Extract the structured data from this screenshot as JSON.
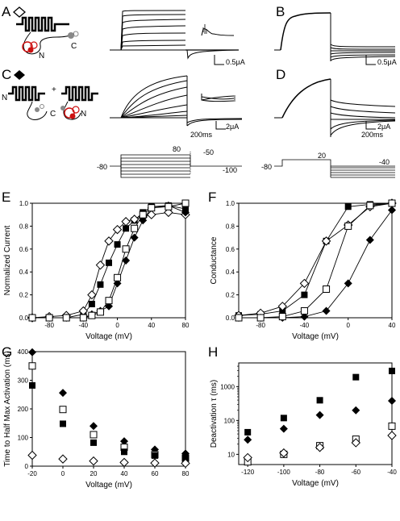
{
  "panels": {
    "A": {
      "label": "A",
      "marker": "open-diamond"
    },
    "B": {
      "label": "B"
    },
    "C": {
      "label": "C",
      "marker": "filled-diamond"
    },
    "D": {
      "label": "D"
    },
    "E": {
      "label": "E"
    },
    "F": {
      "label": "F"
    },
    "G": {
      "label": "G"
    },
    "H": {
      "label": "H"
    }
  },
  "schematic": {
    "n_label": "N",
    "c_label": "C",
    "plus": "+",
    "domain_color": "#cc1111"
  },
  "scalebars": {
    "A_current": "0.5μA",
    "B_current": "0.5μA",
    "C_current": "2μA",
    "C_time": "200ms",
    "D_current": "2μA",
    "D_time": "200ms"
  },
  "protocols": {
    "left": {
      "hold": "-80",
      "step": "80",
      "tail1": "-50",
      "tail2": "-100"
    },
    "right": {
      "hold": "-80",
      "step": "20",
      "tail": "-40"
    }
  },
  "chart_data": [
    {
      "panel": "E",
      "type": "scatter",
      "xlabel": "Voltage (mV)",
      "ylabel": "Normalized Current",
      "xlim": [
        -100,
        80
      ],
      "ylim": [
        0,
        1.0
      ],
      "xticks": [
        "-80",
        "-40",
        "0",
        "40",
        "80"
      ],
      "yticks": [
        "0.0",
        "0.2",
        "0.4",
        "0.6",
        "0.8",
        "1.0"
      ],
      "series": [
        {
          "marker": "filled-square",
          "x": [
            -100,
            -80,
            -60,
            -40,
            -30,
            -20,
            -10,
            0,
            10,
            20,
            30,
            40,
            60,
            80
          ],
          "y": [
            0.0,
            0.0,
            0.0,
            0.03,
            0.12,
            0.29,
            0.48,
            0.64,
            0.78,
            0.85,
            0.92,
            0.97,
            0.98,
            0.95
          ]
        },
        {
          "marker": "open-diamond",
          "x": [
            -100,
            -80,
            -60,
            -40,
            -30,
            -20,
            -10,
            0,
            10,
            20,
            30,
            40,
            60,
            80
          ],
          "y": [
            0.0,
            0.01,
            0.02,
            0.06,
            0.2,
            0.46,
            0.67,
            0.77,
            0.84,
            0.86,
            0.88,
            0.9,
            0.92,
            0.9
          ]
        },
        {
          "marker": "filled-diamond",
          "x": [
            -100,
            -80,
            -60,
            -40,
            -30,
            -20,
            -10,
            0,
            10,
            20,
            30,
            40,
            60,
            80
          ],
          "y": [
            0.0,
            0.0,
            0.0,
            0.0,
            0.03,
            0.06,
            0.1,
            0.3,
            0.5,
            0.7,
            0.85,
            0.96,
            0.98,
            0.92
          ]
        },
        {
          "marker": "open-square",
          "x": [
            -100,
            -80,
            -60,
            -40,
            -30,
            -20,
            -10,
            0,
            10,
            20,
            30,
            40,
            60,
            80
          ],
          "y": [
            0.0,
            0.0,
            0.0,
            0.0,
            0.02,
            0.05,
            0.15,
            0.35,
            0.6,
            0.78,
            0.9,
            0.96,
            0.97,
            1.0
          ]
        }
      ]
    },
    {
      "panel": "F",
      "type": "scatter",
      "xlabel": "Voltage (mV)",
      "ylabel": "Conductance",
      "xlim": [
        -100,
        40
      ],
      "ylim": [
        0,
        1.0
      ],
      "xticks": [
        "-80",
        "-40",
        "0",
        "40"
      ],
      "yticks": [
        "0.0",
        "0.2",
        "0.4",
        "0.6",
        "0.8",
        "1.0"
      ],
      "series": [
        {
          "marker": "filled-square",
          "x": [
            -100,
            -80,
            -60,
            -40,
            -20,
            0,
            20,
            40
          ],
          "y": [
            0.02,
            0.03,
            0.06,
            0.2,
            0.67,
            0.97,
            0.99,
            1.0
          ]
        },
        {
          "marker": "open-diamond",
          "x": [
            -100,
            -80,
            -60,
            -40,
            -20,
            0,
            20,
            40
          ],
          "y": [
            0.02,
            0.04,
            0.1,
            0.3,
            0.67,
            0.81,
            0.97,
            1.0
          ]
        },
        {
          "marker": "filled-diamond",
          "x": [
            -100,
            -80,
            -60,
            -40,
            -20,
            0,
            20,
            40
          ],
          "y": [
            0.0,
            0.0,
            0.0,
            0.01,
            0.06,
            0.3,
            0.68,
            0.94
          ]
        },
        {
          "marker": "open-square",
          "x": [
            -100,
            -80,
            -60,
            -40,
            -20,
            0,
            20,
            40
          ],
          "y": [
            0.0,
            0.0,
            0.01,
            0.06,
            0.25,
            0.8,
            0.98,
            1.0
          ]
        }
      ]
    },
    {
      "panel": "G",
      "type": "scatter",
      "xlabel": "Voltage (mV)",
      "ylabel": "Time to Half Max Activation (ms)",
      "xlim": [
        -20,
        80
      ],
      "ylim": [
        0,
        400
      ],
      "xticks": [
        "-20",
        "0",
        "20",
        "40",
        "60",
        "80"
      ],
      "yticks": [
        "0",
        "100",
        "200",
        "300",
        "400"
      ],
      "series": [
        {
          "marker": "filled-diamond",
          "x": [
            -20,
            0,
            20,
            40,
            60,
            80
          ],
          "y": [
            398,
            256,
            140,
            87,
            58,
            44
          ]
        },
        {
          "marker": "open-square",
          "x": [
            -20,
            0,
            20,
            40,
            60,
            80
          ],
          "y": [
            350,
            198,
            110,
            66,
            40,
            28
          ]
        },
        {
          "marker": "filled-square",
          "x": [
            -20,
            0,
            20,
            40,
            60,
            80
          ],
          "y": [
            282,
            148,
            82,
            50,
            37,
            27
          ]
        },
        {
          "marker": "open-diamond",
          "x": [
            -20,
            0,
            20,
            40,
            60,
            80
          ],
          "y": [
            38,
            25,
            18,
            13,
            11,
            10
          ]
        }
      ]
    },
    {
      "panel": "H",
      "type": "scatter",
      "xlabel": "Voltage (mV)",
      "ylabel": "Deactivation τ (ms)",
      "xlim": [
        -125,
        -40
      ],
      "ylim": [
        5,
        5000
      ],
      "yscale": "log",
      "xticks": [
        "-120",
        "-100",
        "-80",
        "-60",
        "-40"
      ],
      "yticks": [
        "10",
        "100",
        "1000"
      ],
      "series": [
        {
          "marker": "filled-square",
          "x": [
            -120,
            -100,
            -80,
            -60,
            -40
          ],
          "y": [
            45,
            118,
            395,
            1900,
            2900
          ]
        },
        {
          "marker": "filled-diamond",
          "x": [
            -120,
            -100,
            -80,
            -60,
            -40
          ],
          "y": [
            27,
            57,
            145,
            200,
            380
          ]
        },
        {
          "marker": "open-square",
          "x": [
            -120,
            -100,
            -80,
            -60,
            -40
          ],
          "y": [
            6,
            10,
            18,
            28,
            68
          ]
        },
        {
          "marker": "open-diamond",
          "x": [
            -120,
            -100,
            -80,
            -60,
            -40
          ],
          "y": [
            8,
            11,
            16,
            22,
            36
          ]
        }
      ]
    }
  ]
}
